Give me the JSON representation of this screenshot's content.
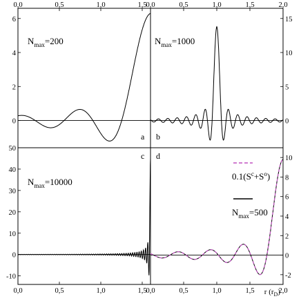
{
  "chart_data": [
    {
      "panel": "a",
      "type": "line",
      "xlim": [
        0,
        1
      ],
      "ylim": [
        -1.6,
        6.6
      ],
      "xticks": [
        "0,0",
        "0,5",
        "1,0",
        "1,5"
      ],
      "yticks": [
        {
          "v": 0,
          "label": "0"
        },
        {
          "v": 2,
          "label": "2"
        },
        {
          "v": 4,
          "label": "4"
        },
        {
          "v": 6,
          "label": "6"
        }
      ],
      "yaxis_side": "left",
      "annotation": {
        "main": "N",
        "sub": "max",
        "rest": "=200"
      },
      "series": [
        {
          "peak": 6.3,
          "center": 1.0,
          "nmax": 200
        }
      ]
    },
    {
      "panel": "b",
      "type": "line",
      "xlim": [
        0,
        2
      ],
      "ylim": [
        -4,
        16.5
      ],
      "xticks": [
        "0,0",
        "0,5",
        "1,0",
        "1,5",
        "2,0"
      ],
      "yticks": [
        {
          "v": 0,
          "label": "0"
        },
        {
          "v": 5,
          "label": "5"
        },
        {
          "v": 10,
          "label": "10"
        },
        {
          "v": 15,
          "label": "15"
        }
      ],
      "yaxis_side": "right",
      "annotation": {
        "main": "N",
        "sub": "max",
        "rest": "=1000"
      },
      "series": [
        {
          "peak": 13.8,
          "center": 1.0,
          "nmax": 1000
        }
      ]
    },
    {
      "panel": "c",
      "type": "line",
      "xlim": [
        0,
        1
      ],
      "ylim": [
        -14,
        50
      ],
      "xticks": [
        "0,0",
        "0,5",
        "1,0",
        "1,5"
      ],
      "yticks": [
        {
          "v": -10,
          "label": "-10"
        },
        {
          "v": 0,
          "label": "0"
        },
        {
          "v": 10,
          "label": "10"
        },
        {
          "v": 20,
          "label": "20"
        },
        {
          "v": 30,
          "label": "30"
        },
        {
          "v": 40,
          "label": "40"
        },
        {
          "v": 50,
          "label": "50"
        }
      ],
      "yaxis_side": "left",
      "annotation": {
        "main": "N",
        "sub": "max",
        "rest": "=10000"
      },
      "series": [
        {
          "peak": 45,
          "center": 1.0,
          "nmax": 10000
        }
      ]
    },
    {
      "panel": "d",
      "type": "line",
      "xlim": [
        0,
        1
      ],
      "ylim": [
        -3,
        11
      ],
      "xticks": [
        "0,0",
        "0,5",
        "1,0",
        "1,5",
        "2,0"
      ],
      "yticks": [
        {
          "v": -2,
          "label": "-2"
        },
        {
          "v": 0,
          "label": "0"
        },
        {
          "v": 2,
          "label": "2"
        },
        {
          "v": 4,
          "label": "4"
        },
        {
          "v": 6,
          "label": "6"
        },
        {
          "v": 8,
          "label": "8"
        },
        {
          "v": 10,
          "label": "10"
        }
      ],
      "yaxis_side": "right",
      "xlabel": "r (r",
      "xlabel_sub": "D",
      "xlabel_end": ")",
      "legend": [
        {
          "style": "dashed",
          "color": "#c050c0",
          "main": "0.1(S",
          "sup1": "c",
          "mid": "+S",
          "sup2": "o",
          "end": ")"
        },
        {
          "style": "solid",
          "color": "#000000",
          "main": "N",
          "sub": "max",
          "rest": "=500"
        }
      ],
      "series": [
        {
          "peak": 9.8,
          "center": 1.0,
          "nmax": 500
        }
      ]
    }
  ]
}
